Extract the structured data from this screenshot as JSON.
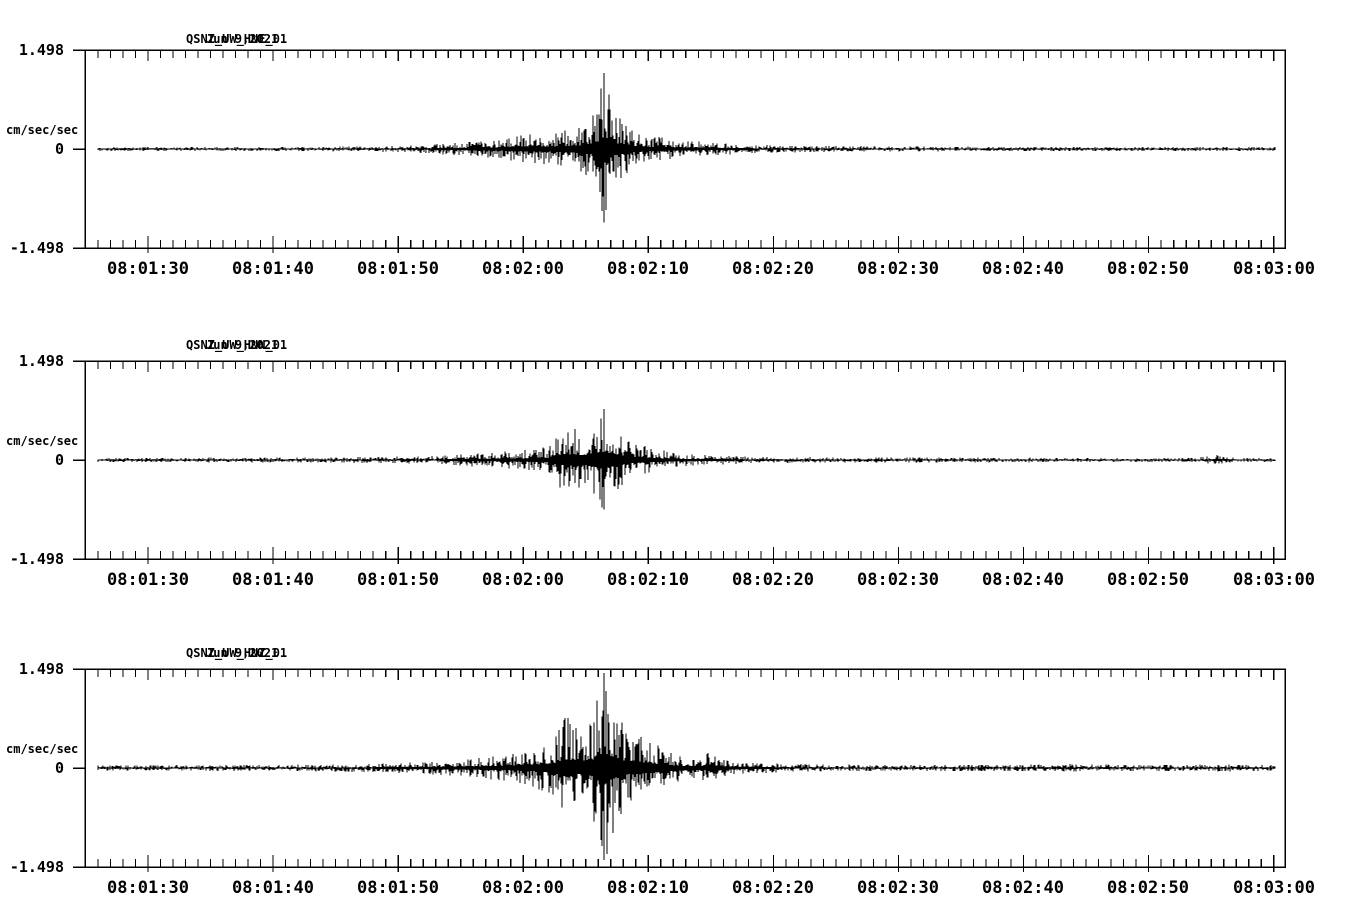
{
  "page": {
    "background": "#ffffff",
    "ink": "#000000"
  },
  "chart_data": {
    "type": "line",
    "subtype": "seismogram-three-component",
    "grid": false,
    "legend": "none",
    "x_axis": {
      "start": "08:01:25",
      "end": "08:03:01",
      "major_interval_sec": 10,
      "minor_interval_sec": 1,
      "tick_labels": [
        "08:01:30",
        "08:01:40",
        "08:01:50",
        "08:02:00",
        "08:02:10",
        "08:02:20",
        "08:02:30",
        "08:02:40",
        "08:02:50",
        "08:03:00"
      ]
    },
    "y_axis": {
      "ylim": [
        -1.498,
        1.498
      ],
      "unit_label": "cm/sec/sec",
      "tick_labels": {
        "max": "1.498",
        "zero": "0",
        "min": "-1.498"
      }
    },
    "panels": [
      {
        "station": "QSNZ_UW_HNE_01",
        "date": "Jun 9,2021",
        "component": "HNE",
        "seed": 101,
        "envelope": [
          [
            0,
            0.03
          ],
          [
            20,
            0.035
          ],
          [
            26,
            0.05
          ],
          [
            30,
            0.1
          ],
          [
            33,
            0.14
          ],
          [
            35,
            0.21
          ],
          [
            37,
            0.24
          ],
          [
            39,
            0.3
          ],
          [
            40.3,
            0.42
          ],
          [
            41.0,
            0.65
          ],
          [
            41.5,
            1.18
          ],
          [
            42.3,
            0.6
          ],
          [
            43.5,
            0.33
          ],
          [
            45,
            0.21
          ],
          [
            47,
            0.15
          ],
          [
            50,
            0.1
          ],
          [
            54,
            0.06
          ],
          [
            60,
            0.045
          ],
          [
            70,
            0.035
          ],
          [
            95,
            0.03
          ]
        ]
      },
      {
        "station": "QSNZ_UW_HNN_01",
        "date": "Jun 9,2021",
        "component": "HNN",
        "seed": 202,
        "envelope": [
          [
            0,
            0.03
          ],
          [
            20,
            0.04
          ],
          [
            28,
            0.06
          ],
          [
            31,
            0.1
          ],
          [
            33,
            0.12
          ],
          [
            35,
            0.15
          ],
          [
            37,
            0.2
          ],
          [
            38.5,
            0.53
          ],
          [
            39.5,
            0.45
          ],
          [
            40.5,
            0.5
          ],
          [
            41.5,
            0.79
          ],
          [
            42.5,
            0.5
          ],
          [
            43.5,
            0.3
          ],
          [
            45,
            0.2
          ],
          [
            47,
            0.12
          ],
          [
            50,
            0.08
          ],
          [
            54,
            0.05
          ],
          [
            60,
            0.04
          ],
          [
            88,
            0.03
          ],
          [
            90.5,
            0.075
          ],
          [
            92,
            0.03
          ],
          [
            95,
            0.03
          ]
        ]
      },
      {
        "station": "QSNZ_UW_HNZ_01",
        "date": "Jun 9,2021",
        "component": "HNZ",
        "seed": 303,
        "envelope": [
          [
            0,
            0.04
          ],
          [
            15,
            0.045
          ],
          [
            22,
            0.06
          ],
          [
            27,
            0.09
          ],
          [
            30,
            0.13
          ],
          [
            32,
            0.17
          ],
          [
            34,
            0.21
          ],
          [
            36,
            0.3
          ],
          [
            37.5,
            0.42
          ],
          [
            38.5,
            0.83
          ],
          [
            39.5,
            0.55
          ],
          [
            40.5,
            0.7
          ],
          [
            41.5,
            1.47
          ],
          [
            42.3,
            0.95
          ],
          [
            43.2,
            0.6
          ],
          [
            44.5,
            0.52
          ],
          [
            46,
            0.33
          ],
          [
            47.5,
            0.21
          ],
          [
            49,
            0.14
          ],
          [
            50,
            0.26
          ],
          [
            51,
            0.14
          ],
          [
            52.5,
            0.09
          ],
          [
            55,
            0.07
          ],
          [
            60,
            0.05
          ],
          [
            75,
            0.05
          ],
          [
            78,
            0.06
          ],
          [
            85,
            0.045
          ],
          [
            92,
            0.055
          ],
          [
            95,
            0.045
          ]
        ]
      }
    ]
  }
}
